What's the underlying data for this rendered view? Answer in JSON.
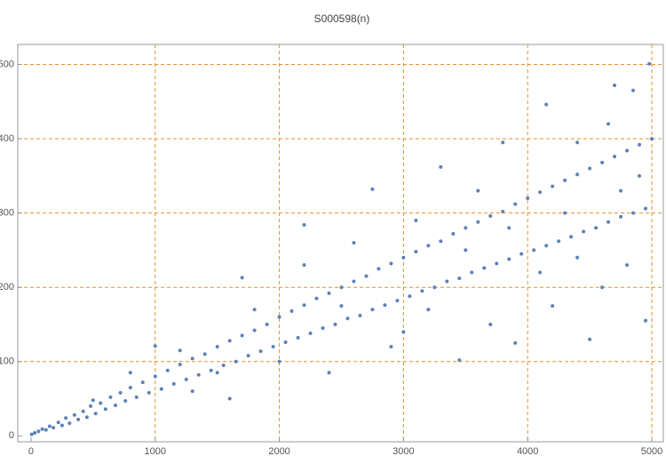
{
  "chart_data": {
    "type": "scatter",
    "title": "S000598(n)",
    "color": "#5e81b5",
    "grid": true,
    "grid_color": "#e8902a",
    "xlim": [
      -107,
      5093
    ],
    "ylim": [
      -8,
      527
    ],
    "xticks": [
      0,
      1000,
      2000,
      3000,
      4000,
      5000
    ],
    "yticks": [
      0,
      100,
      200,
      300,
      400,
      500
    ],
    "x": [
      5,
      30,
      60,
      90,
      120,
      150,
      180,
      220,
      250,
      280,
      310,
      350,
      380,
      420,
      450,
      480,
      520,
      560,
      600,
      640,
      680,
      720,
      760,
      800,
      850,
      900,
      950,
      1000,
      1050,
      1100,
      1150,
      1200,
      1250,
      1300,
      1350,
      1400,
      1450,
      1500,
      1550,
      1600,
      1650,
      1700,
      1750,
      1800,
      1850,
      1900,
      1950,
      2000,
      2050,
      2100,
      2150,
      2200,
      2250,
      2300,
      2350,
      2400,
      2450,
      2500,
      2550,
      2600,
      2650,
      2700,
      2750,
      2800,
      2850,
      2900,
      2950,
      3000,
      3050,
      3100,
      3150,
      3200,
      3250,
      3300,
      3350,
      3400,
      3450,
      3500,
      3550,
      3600,
      3650,
      3700,
      3750,
      3800,
      3850,
      3900,
      3950,
      4000,
      4050,
      4100,
      4150,
      4200,
      4250,
      4300,
      4350,
      4400,
      4450,
      4500,
      4550,
      4600,
      4650,
      4700,
      4750,
      4800,
      4850,
      4900,
      4950,
      5000,
      4980,
      4700,
      4850,
      4150,
      3800,
      3300,
      2750,
      2200,
      1700,
      1000,
      4500,
      4950,
      3450,
      3900,
      2400,
      1600,
      4200,
      3700,
      4600,
      2900,
      4800,
      3200,
      2000,
      1300,
      4400,
      3600,
      4100,
      4900,
      3000,
      2600,
      1800,
      1200,
      800,
      500,
      2200,
      4300,
      4750,
      3500,
      2500,
      3850,
      1500,
      4650,
      4400,
      3100
    ],
    "y": [
      2,
      4,
      6,
      9,
      8,
      13,
      11,
      18,
      14,
      24,
      17,
      28,
      22,
      33,
      25,
      40,
      30,
      44,
      36,
      52,
      41,
      58,
      47,
      65,
      52,
      72,
      58,
      80,
      63,
      88,
      70,
      96,
      76,
      104,
      82,
      110,
      88,
      120,
      95,
      128,
      100,
      135,
      108,
      142,
      114,
      150,
      120,
      160,
      126,
      168,
      132,
      176,
      138,
      185,
      145,
      192,
      150,
      200,
      158,
      208,
      162,
      215,
      170,
      225,
      176,
      232,
      182,
      240,
      188,
      248,
      195,
      256,
      200,
      262,
      208,
      272,
      212,
      280,
      220,
      288,
      226,
      296,
      232,
      302,
      238,
      312,
      245,
      320,
      250,
      328,
      256,
      336,
      262,
      344,
      268,
      352,
      275,
      360,
      280,
      368,
      288,
      376,
      295,
      384,
      300,
      392,
      306,
      400,
      501,
      472,
      465,
      446,
      395,
      362,
      332,
      284,
      213,
      121,
      130,
      155,
      102,
      125,
      85,
      50,
      175,
      150,
      200,
      120,
      230,
      170,
      100,
      60,
      240,
      330,
      220,
      350,
      140,
      260,
      170,
      115,
      85,
      48,
      230,
      300,
      330,
      250,
      175,
      280,
      85,
      420,
      395,
      290
    ]
  }
}
